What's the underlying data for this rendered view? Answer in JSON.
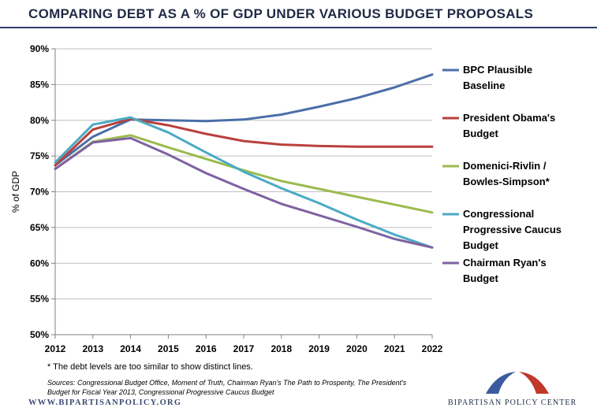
{
  "header": {
    "title": "COMPARING DEBT AS A % OF GDP UNDER VARIOUS BUDGET PROPOSALS"
  },
  "chart_data": {
    "type": "line",
    "title": "COMPARING DEBT AS A % OF GDP UNDER VARIOUS BUDGET PROPOSALS",
    "xlabel": "",
    "ylabel": "% of GDP",
    "ylim": [
      50,
      90
    ],
    "y_tick_step": 5,
    "y_tick_labels": [
      "50%",
      "55%",
      "60%",
      "65%",
      "70%",
      "75%",
      "80%",
      "85%",
      "90%"
    ],
    "x": [
      "2012",
      "2013",
      "2014",
      "2015",
      "2016",
      "2017",
      "2018",
      "2019",
      "2020",
      "2021",
      "2022"
    ],
    "grid": "horizontal",
    "legend_position": "right",
    "series": [
      {
        "name": "BPC Plausible Baseline",
        "legend_lines": [
          "BPC Plausible",
          "Baseline"
        ],
        "color": "#4a6fa8",
        "values": [
          73.7,
          77.7,
          80.1,
          80.0,
          79.9,
          80.1,
          80.8,
          81.9,
          83.1,
          84.6,
          86.4
        ]
      },
      {
        "name": "President Obama's Budget",
        "legend_lines": [
          "President Obama's",
          "Budget"
        ],
        "color": "#b9403c",
        "values": [
          73.7,
          78.7,
          80.2,
          79.3,
          78.1,
          77.1,
          76.6,
          76.4,
          76.3,
          76.3,
          76.3
        ]
      },
      {
        "name": "Domenici-Rivlin / Bowles-Simpson*",
        "legend_lines": [
          "Domenici-Rivlin /",
          "Bowles-Simpson*"
        ],
        "color": "#9bbb4f",
        "values": [
          73.2,
          77.0,
          77.9,
          76.2,
          74.6,
          73.0,
          71.5,
          70.4,
          69.3,
          68.2,
          67.1
        ]
      },
      {
        "name": "Congressional Progressive Caucus Budget",
        "legend_lines": [
          "Congressional",
          "Progressive Caucus",
          "Budget"
        ],
        "color": "#4aaac4",
        "values": [
          74.1,
          79.4,
          80.4,
          78.3,
          75.5,
          72.8,
          70.5,
          68.4,
          66.1,
          64.0,
          62.2
        ]
      },
      {
        "name": "Chairman Ryan's Budget",
        "legend_lines": [
          "Chairman Ryan's",
          "Budget"
        ],
        "color": "#7e62a2",
        "values": [
          73.2,
          76.9,
          77.5,
          75.2,
          72.6,
          70.4,
          68.3,
          66.7,
          65.1,
          63.4,
          62.2
        ]
      }
    ]
  },
  "footnote": "* The debt levels are too similar to show distinct lines.",
  "sources": "Sources: Congressional Budget Office, Moment of Truth, Chairman Ryan's The Path to Prosperity, The President's Budget for Fiscal Year 2013, Congressional Progressive Caucus Budget",
  "branding": {
    "website": "WWW.BIPARTISANPOLICY.ORG",
    "org_name": "BIPARTISAN POLICY CENTER",
    "logo_colors": {
      "left": "#3b5aa0",
      "right": "#c0392b"
    }
  }
}
